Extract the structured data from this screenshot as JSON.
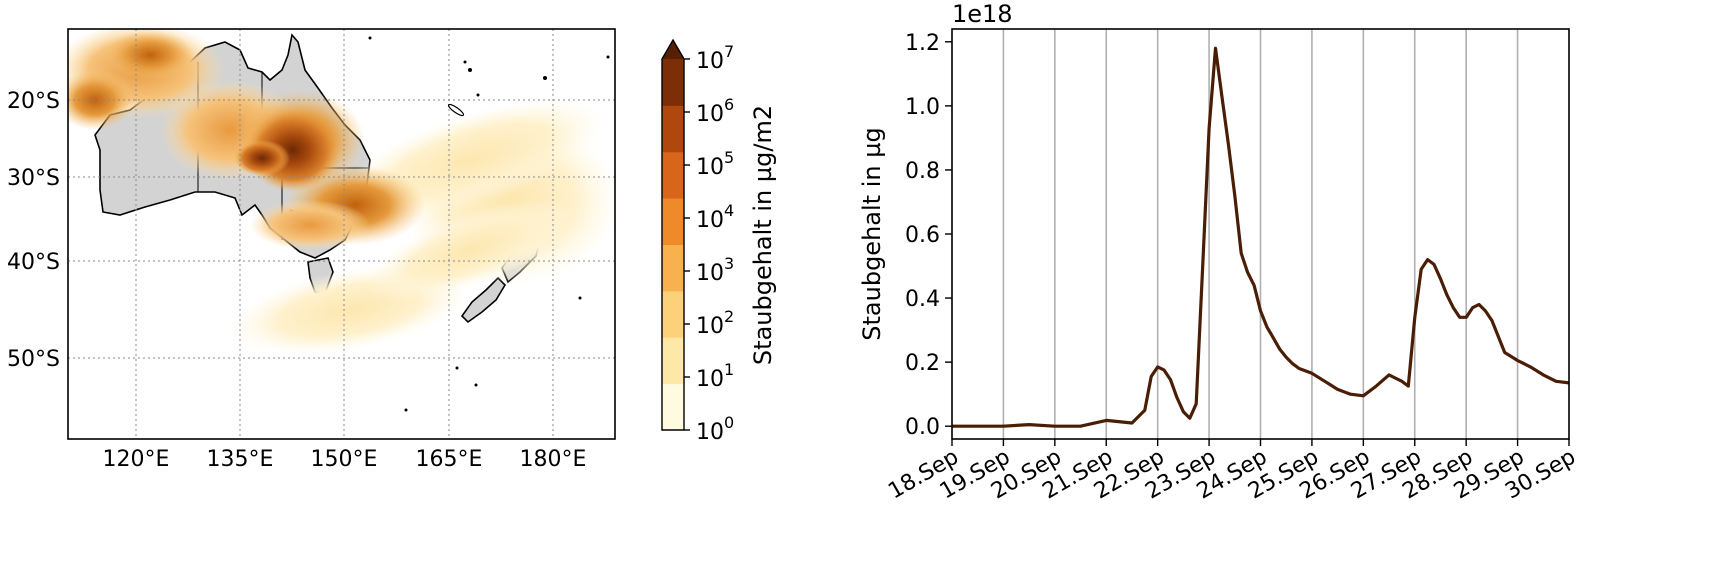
{
  "map_panel": {
    "lat_ticks": [
      "20°S",
      "30°S",
      "40°S",
      "50°S"
    ],
    "lon_ticks": [
      "120°E",
      "135°E",
      "150°E",
      "165°E",
      "180°E"
    ]
  },
  "colorbar": {
    "label": "Staubgehalt in µg/m2",
    "scale": "log",
    "tick_base": "10",
    "tick_exponents": [
      "0",
      "1",
      "2",
      "3",
      "4",
      "5",
      "6",
      "7"
    ],
    "extend": "max",
    "colors": [
      "#fffbe1",
      "#fee8a7",
      "#fdd07a",
      "#f9b04e",
      "#ee8a2a",
      "#d8661a",
      "#b0480e",
      "#7e2e07",
      "#552004"
    ]
  },
  "chart_data": {
    "type": "line",
    "title": "",
    "ylabel": "Staubgehalt in µg",
    "offset_text": "1e18",
    "yscale_factor": 1e+18,
    "ylim": [
      -0.04,
      1.24
    ],
    "yticks": [
      "0.0",
      "0.2",
      "0.4",
      "0.6",
      "0.8",
      "1.0",
      "1.2"
    ],
    "xticks": [
      "18.Sep",
      "19.Sep",
      "20.Sep",
      "21.Sep",
      "22.Sep",
      "23.Sep",
      "24.Sep",
      "25.Sep",
      "26.Sep",
      "27.Sep",
      "28.Sep",
      "29.Sep",
      "30.Sep"
    ],
    "x_start": "2019-09-18",
    "x_end": "2019-09-30",
    "grid": "x",
    "line_color": "#4a1e06",
    "series": [
      {
        "x": [
          "2019-09-18 00:00",
          "2019-09-19 00:00",
          "2019-09-19 12:00",
          "2019-09-20 00:00",
          "2019-09-20 12:00",
          "2019-09-21 00:00",
          "2019-09-21 12:00",
          "2019-09-21 18:00",
          "2019-09-21 21:00",
          "2019-09-22 00:00",
          "2019-09-22 03:00",
          "2019-09-22 06:00",
          "2019-09-22 09:00",
          "2019-09-22 12:00",
          "2019-09-22 15:00",
          "2019-09-22 18:00",
          "2019-09-22 21:00",
          "2019-09-23 00:00",
          "2019-09-23 03:00",
          "2019-09-23 06:00",
          "2019-09-23 09:00",
          "2019-09-23 12:00",
          "2019-09-23 15:00",
          "2019-09-23 18:00",
          "2019-09-23 21:00",
          "2019-09-24 00:00",
          "2019-09-24 03:00",
          "2019-09-24 06:00",
          "2019-09-24 09:00",
          "2019-09-24 12:00",
          "2019-09-24 15:00",
          "2019-09-24 18:00",
          "2019-09-25 00:00",
          "2019-09-25 06:00",
          "2019-09-25 12:00",
          "2019-09-25 18:00",
          "2019-09-26 00:00",
          "2019-09-26 06:00",
          "2019-09-26 12:00",
          "2019-09-26 18:00",
          "2019-09-26 21:00",
          "2019-09-27 00:00",
          "2019-09-27 03:00",
          "2019-09-27 06:00",
          "2019-09-27 09:00",
          "2019-09-27 12:00",
          "2019-09-27 15:00",
          "2019-09-27 18:00",
          "2019-09-27 21:00",
          "2019-09-28 00:00",
          "2019-09-28 03:00",
          "2019-09-28 06:00",
          "2019-09-28 09:00",
          "2019-09-28 12:00",
          "2019-09-28 15:00",
          "2019-09-28 18:00",
          "2019-09-29 00:00",
          "2019-09-29 06:00",
          "2019-09-29 12:00",
          "2019-09-29 18:00",
          "2019-09-30 00:00",
          "2019-09-30 06:00",
          "2019-09-30 12:00",
          "2019-09-30 18:00",
          "2019-10-01 00:00"
        ],
        "values": [
          0.0,
          0.0,
          0.005,
          0.0,
          0.0,
          0.018,
          0.01,
          0.05,
          0.155,
          0.185,
          0.175,
          0.145,
          0.09,
          0.045,
          0.025,
          0.07,
          0.5,
          0.93,
          1.18,
          1.03,
          0.88,
          0.72,
          0.54,
          0.48,
          0.44,
          0.36,
          0.31,
          0.275,
          0.24,
          0.215,
          0.195,
          0.18,
          0.165,
          0.14,
          0.115,
          0.1,
          0.095,
          0.125,
          0.16,
          0.14,
          0.125,
          0.34,
          0.49,
          0.52,
          0.505,
          0.46,
          0.41,
          0.37,
          0.34,
          0.34,
          0.37,
          0.38,
          0.36,
          0.33,
          0.28,
          0.23,
          0.205,
          0.185,
          0.16,
          0.14,
          0.135,
          0.16,
          0.175,
          0.155,
          0.135
        ]
      }
    ]
  }
}
